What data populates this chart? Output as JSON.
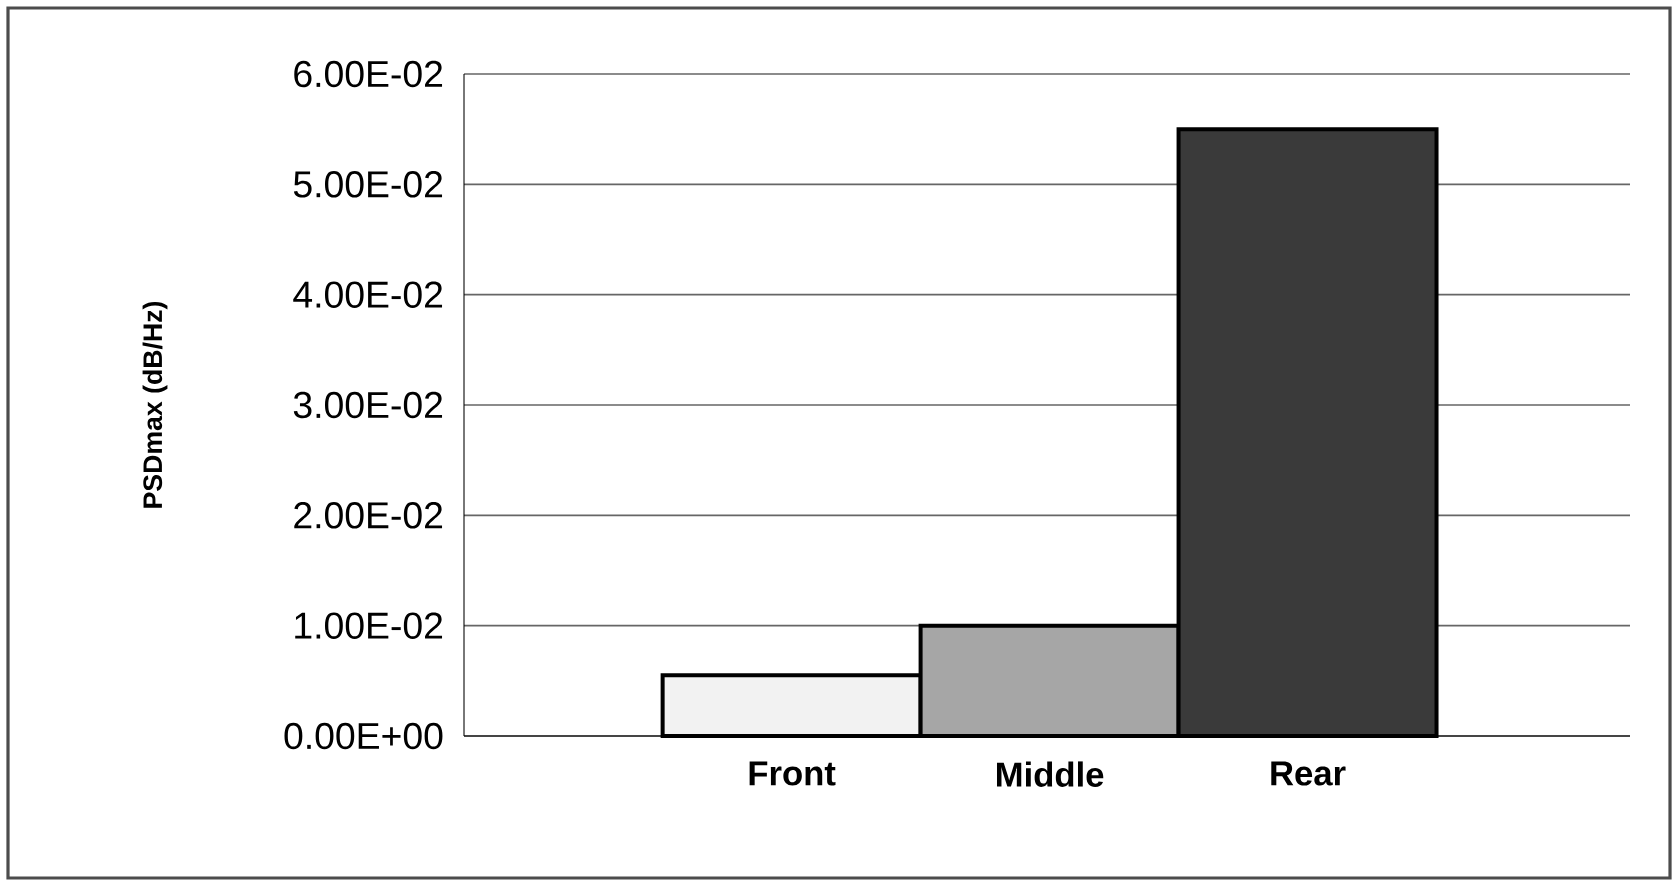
{
  "chart_data": {
    "type": "bar",
    "ylabel": "PSDmax (dB/Hz)",
    "categories": [
      "Front",
      "Middle",
      "Rear"
    ],
    "values": [
      0.0055,
      0.01,
      0.055
    ],
    "colors": [
      "#f2f2f2",
      "#a6a6a6",
      "#3a3a3a"
    ],
    "ylim": [
      0,
      0.06
    ],
    "yticks": [
      {
        "value": 0,
        "label": "0.00E+00"
      },
      {
        "value": 0.01,
        "label": "1.00E-02"
      },
      {
        "value": 0.02,
        "label": "2.00E-02"
      },
      {
        "value": 0.03,
        "label": "3.00E-02"
      },
      {
        "value": 0.04,
        "label": "4.00E-02"
      },
      {
        "value": 0.05,
        "label": "5.00E-02"
      },
      {
        "value": 0.06,
        "label": "6.00E-02"
      }
    ],
    "grid": "y"
  }
}
